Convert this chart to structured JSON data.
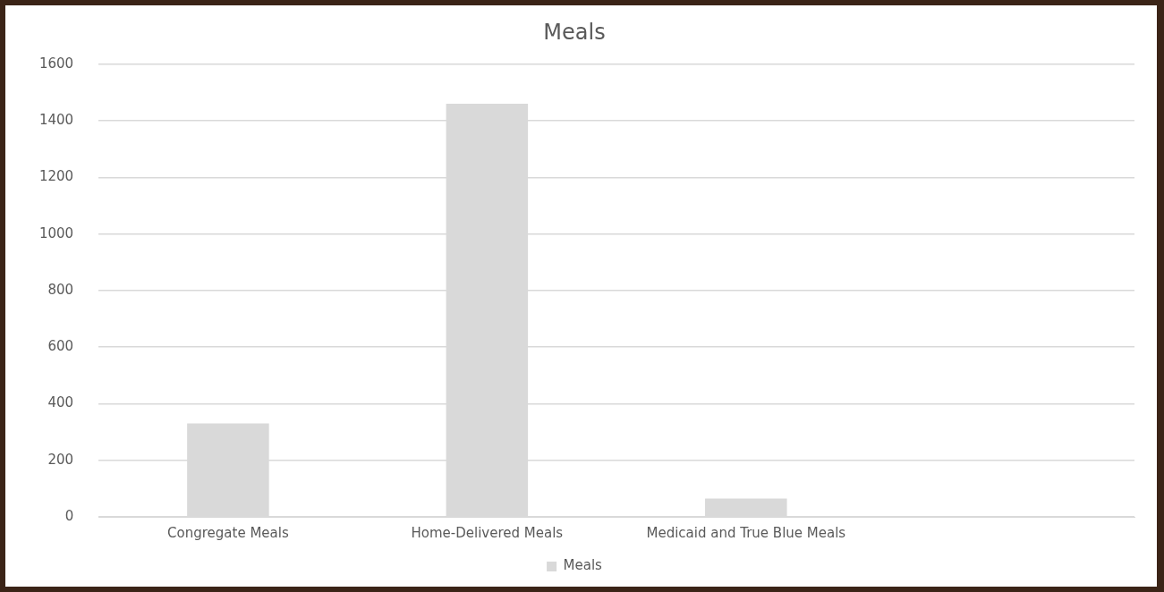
{
  "chart_data": {
    "type": "bar",
    "title": "Meals",
    "categories": [
      "Congregate Meals",
      "Home-Delivered Meals",
      "Medicaid and True Blue Meals",
      null
    ],
    "series": [
      {
        "name": "Meals",
        "color": "#d9d9d9",
        "values": [
          330,
          1460,
          65,
          null
        ]
      }
    ],
    "ylim": [
      0,
      1600
    ],
    "yticks": [
      0,
      200,
      400,
      600,
      800,
      1000,
      1200,
      1400,
      1600
    ],
    "grid": "y",
    "legend": "bottom"
  }
}
